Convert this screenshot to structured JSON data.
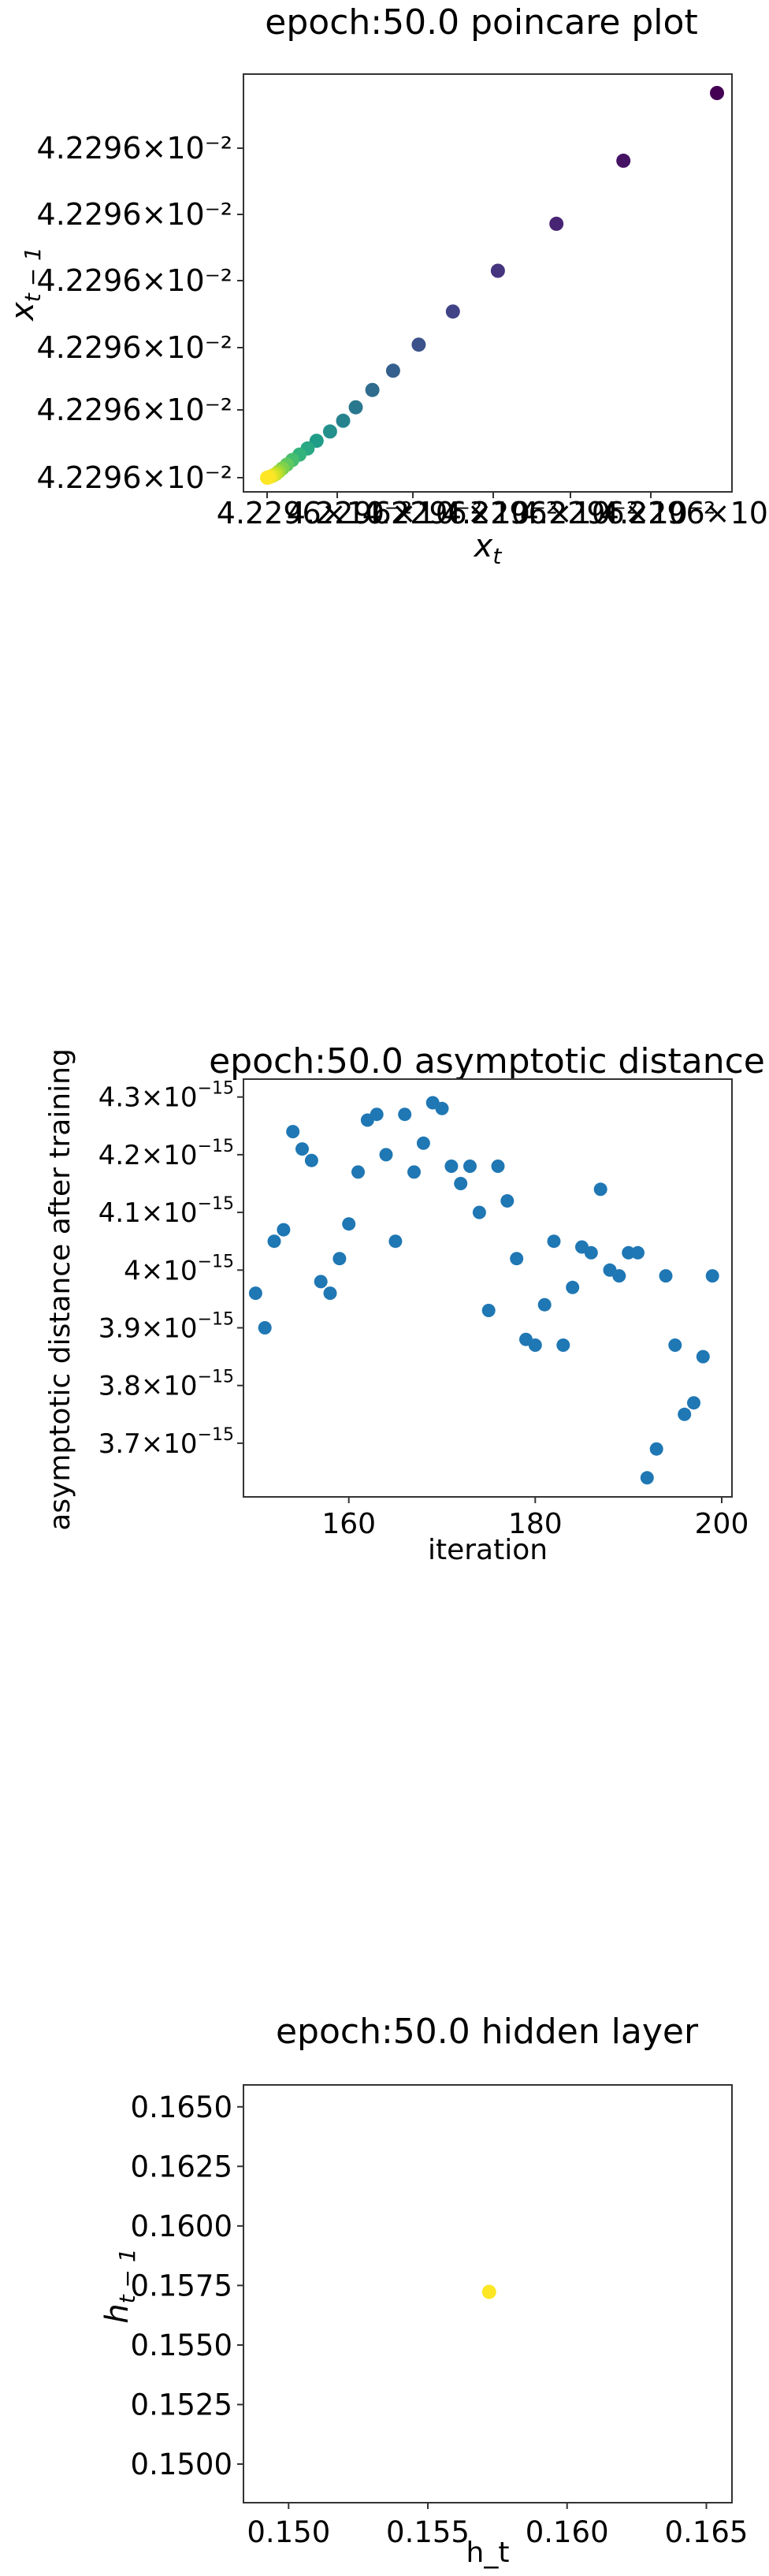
{
  "colors": {
    "viridis_start": "#440154",
    "viridis_end": "#fde725",
    "series_blue": "#1f77b4",
    "axis": "#333333"
  },
  "chart_data": [
    {
      "type": "scatter",
      "title": "epoch:50.0 poincare plot",
      "xlabel": "x_t",
      "ylabel": "x_{t-1}",
      "color_scale": "viridis",
      "xtick_labels": [
        "4.2296×10⁻²",
        "4.2296×10⁻²",
        "4.2296×10⁻²",
        "4.2296×10⁻²",
        "4.2296×10⁻²",
        "4.2296×10⁻²"
      ],
      "ytick_labels": [
        "4.2296×10⁻²",
        "4.2296×10⁻²",
        "4.2296×10⁻²",
        "4.2296×10⁻²",
        "4.2296×10⁻²",
        "4.2296×10⁻²"
      ],
      "xlim": [
        0,
        1
      ],
      "ylim": [
        0,
        1
      ],
      "points": [
        [
          1.0,
          1.0,
          0.0
        ],
        [
          0.792,
          0.824,
          0.05
        ],
        [
          0.643,
          0.66,
          0.1
        ],
        [
          0.513,
          0.538,
          0.15
        ],
        [
          0.413,
          0.432,
          0.2
        ],
        [
          0.337,
          0.346,
          0.25
        ],
        [
          0.28,
          0.278,
          0.3
        ],
        [
          0.234,
          0.228,
          0.35
        ],
        [
          0.197,
          0.183,
          0.4
        ],
        [
          0.169,
          0.148,
          0.45
        ],
        [
          0.14,
          0.12,
          0.5
        ],
        [
          0.11,
          0.096,
          0.55
        ],
        [
          0.09,
          0.076,
          0.6
        ],
        [
          0.072,
          0.06,
          0.65
        ],
        [
          0.056,
          0.046,
          0.7
        ],
        [
          0.044,
          0.034,
          0.75
        ],
        [
          0.034,
          0.024,
          0.8
        ],
        [
          0.026,
          0.016,
          0.85
        ],
        [
          0.02,
          0.01,
          0.9
        ],
        [
          0.014,
          0.006,
          0.94
        ],
        [
          0.008,
          0.003,
          0.97
        ],
        [
          0.004,
          0.001,
          0.99
        ],
        [
          0.0,
          0.0,
          1.0
        ]
      ]
    },
    {
      "type": "scatter",
      "title": "epoch:50.0 asymptotic distance",
      "xlabel": "iteration",
      "ylabel": "asymptotic distance after training",
      "xlim": [
        148.7,
        201.1
      ],
      "ylim": [
        3.607,
        4.331
      ],
      "xticks": [
        160,
        180,
        200
      ],
      "yticks": [
        3.7,
        3.8,
        3.9,
        4.0,
        4.1,
        4.2,
        4.3
      ],
      "ytick_mantissas": [
        "3.7",
        "3.8",
        "3.9",
        "4",
        "4.1",
        "4.2",
        "4.3"
      ],
      "y_exponent": "−15",
      "y_unit": "1e-15",
      "x": [
        150,
        151,
        152,
        153,
        154,
        155,
        156,
        157,
        158,
        159,
        160,
        161,
        162,
        163,
        164,
        165,
        166,
        167,
        168,
        169,
        170,
        171,
        172,
        173,
        174,
        175,
        176,
        177,
        178,
        179,
        180,
        181,
        182,
        183,
        184,
        185,
        186,
        187,
        188,
        189,
        190,
        191,
        192,
        193,
        194,
        195,
        196,
        197,
        198,
        199
      ],
      "y": [
        3.96,
        3.9,
        4.05,
        4.07,
        4.24,
        4.21,
        4.19,
        3.98,
        3.96,
        4.02,
        4.08,
        4.17,
        4.26,
        4.27,
        4.2,
        4.05,
        4.27,
        4.17,
        4.22,
        4.29,
        4.28,
        4.18,
        4.15,
        4.18,
        4.1,
        3.93,
        4.18,
        4.12,
        4.02,
        3.88,
        3.87,
        3.94,
        4.05,
        3.87,
        3.97,
        4.04,
        4.03,
        4.14,
        4.0,
        3.99,
        4.03,
        4.03,
        3.64,
        3.69,
        3.99,
        3.87,
        3.75,
        3.77,
        3.85,
        3.99
      ]
    },
    {
      "type": "scatter",
      "title": "epoch:50.0 hidden layer",
      "xlabel": "h_t",
      "ylabel": "h_{t-1}",
      "xlim": [
        0.14838,
        0.16592
      ],
      "ylim": [
        0.14838,
        0.16592
      ],
      "xticks": [
        0.15,
        0.155,
        0.16,
        0.165
      ],
      "yticks": [
        0.15,
        0.1525,
        0.155,
        0.1575,
        0.16,
        0.1625,
        0.165
      ],
      "points": [
        [
          0.1572,
          0.15723
        ]
      ]
    }
  ]
}
